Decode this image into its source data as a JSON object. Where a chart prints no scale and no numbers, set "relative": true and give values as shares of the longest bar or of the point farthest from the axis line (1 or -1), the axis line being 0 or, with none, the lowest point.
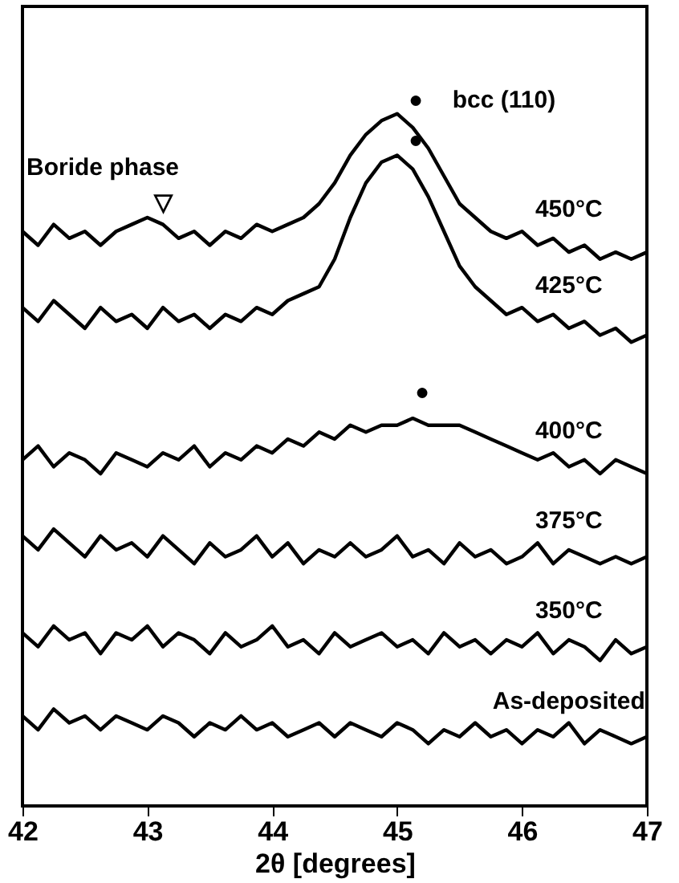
{
  "chart_data": {
    "type": "line",
    "relative": true,
    "xlabel": "2θ [degrees]",
    "xlim": [
      42,
      47
    ],
    "xticks": [
      42,
      43,
      44,
      45,
      46,
      47
    ],
    "legend": false,
    "grid": false,
    "marker": "none",
    "line_style": "solid",
    "tick_labels": "x",
    "x": [
      42,
      42.125,
      42.25,
      42.375,
      42.5,
      42.625,
      42.75,
      42.875,
      43,
      43.125,
      43.25,
      43.375,
      43.5,
      43.625,
      43.75,
      43.875,
      44,
      44.125,
      44.25,
      44.375,
      44.5,
      44.625,
      44.75,
      44.875,
      45,
      45.125,
      45.25,
      45.375,
      45.5,
      45.625,
      45.75,
      45.875,
      46,
      46.125,
      46.25,
      46.375,
      46.5,
      46.625,
      46.75,
      46.875,
      47
    ],
    "series": [
      {
        "name": "450°C",
        "color": "#000000",
        "values": [
          0.83,
          0.81,
          0.84,
          0.82,
          0.83,
          0.81,
          0.83,
          0.84,
          0.85,
          0.84,
          0.82,
          0.83,
          0.81,
          0.83,
          0.82,
          0.84,
          0.83,
          0.84,
          0.85,
          0.87,
          0.9,
          0.94,
          0.97,
          0.99,
          1.0,
          0.98,
          0.95,
          0.91,
          0.87,
          0.85,
          0.83,
          0.82,
          0.83,
          0.81,
          0.82,
          0.8,
          0.81,
          0.79,
          0.8,
          0.79,
          0.8
        ]
      },
      {
        "name": "425°C",
        "color": "#000000",
        "values": [
          0.72,
          0.7,
          0.73,
          0.71,
          0.69,
          0.72,
          0.7,
          0.71,
          0.69,
          0.72,
          0.7,
          0.71,
          0.69,
          0.71,
          0.7,
          0.72,
          0.71,
          0.73,
          0.74,
          0.75,
          0.79,
          0.85,
          0.9,
          0.93,
          0.94,
          0.92,
          0.88,
          0.83,
          0.78,
          0.75,
          0.73,
          0.71,
          0.72,
          0.7,
          0.71,
          0.69,
          0.7,
          0.68,
          0.69,
          0.67,
          0.68
        ]
      },
      {
        "name": "400°C",
        "color": "#000000",
        "values": [
          0.5,
          0.52,
          0.49,
          0.51,
          0.5,
          0.48,
          0.51,
          0.5,
          0.49,
          0.51,
          0.5,
          0.52,
          0.49,
          0.51,
          0.5,
          0.52,
          0.51,
          0.53,
          0.52,
          0.54,
          0.53,
          0.55,
          0.54,
          0.55,
          0.55,
          0.56,
          0.55,
          0.55,
          0.55,
          0.54,
          0.53,
          0.52,
          0.51,
          0.5,
          0.51,
          0.49,
          0.5,
          0.48,
          0.5,
          0.49,
          0.48
        ]
      },
      {
        "name": "375°C",
        "color": "#000000",
        "values": [
          0.39,
          0.37,
          0.4,
          0.38,
          0.36,
          0.39,
          0.37,
          0.38,
          0.36,
          0.39,
          0.37,
          0.35,
          0.38,
          0.36,
          0.37,
          0.39,
          0.36,
          0.38,
          0.35,
          0.37,
          0.36,
          0.38,
          0.36,
          0.37,
          0.39,
          0.36,
          0.37,
          0.35,
          0.38,
          0.36,
          0.37,
          0.35,
          0.36,
          0.38,
          0.35,
          0.37,
          0.36,
          0.35,
          0.36,
          0.35,
          0.36
        ]
      },
      {
        "name": "350°C",
        "color": "#000000",
        "values": [
          0.25,
          0.23,
          0.26,
          0.24,
          0.25,
          0.22,
          0.25,
          0.24,
          0.26,
          0.23,
          0.25,
          0.24,
          0.22,
          0.25,
          0.23,
          0.24,
          0.26,
          0.23,
          0.24,
          0.22,
          0.25,
          0.23,
          0.24,
          0.25,
          0.23,
          0.24,
          0.22,
          0.25,
          0.23,
          0.24,
          0.22,
          0.24,
          0.23,
          0.25,
          0.22,
          0.24,
          0.23,
          0.21,
          0.24,
          0.22,
          0.23
        ]
      },
      {
        "name": "As-deposited",
        "color": "#000000",
        "values": [
          0.13,
          0.11,
          0.14,
          0.12,
          0.13,
          0.11,
          0.13,
          0.12,
          0.11,
          0.13,
          0.12,
          0.1,
          0.12,
          0.11,
          0.13,
          0.11,
          0.12,
          0.1,
          0.11,
          0.12,
          0.1,
          0.12,
          0.11,
          0.1,
          0.12,
          0.11,
          0.09,
          0.11,
          0.1,
          0.12,
          0.1,
          0.11,
          0.09,
          0.11,
          0.1,
          0.12,
          0.09,
          0.11,
          0.1,
          0.09,
          0.1
        ]
      }
    ],
    "annotations": [
      "▽",
      "Boride phase",
      "●",
      "bcc (110)",
      "●",
      "●"
    ]
  }
}
